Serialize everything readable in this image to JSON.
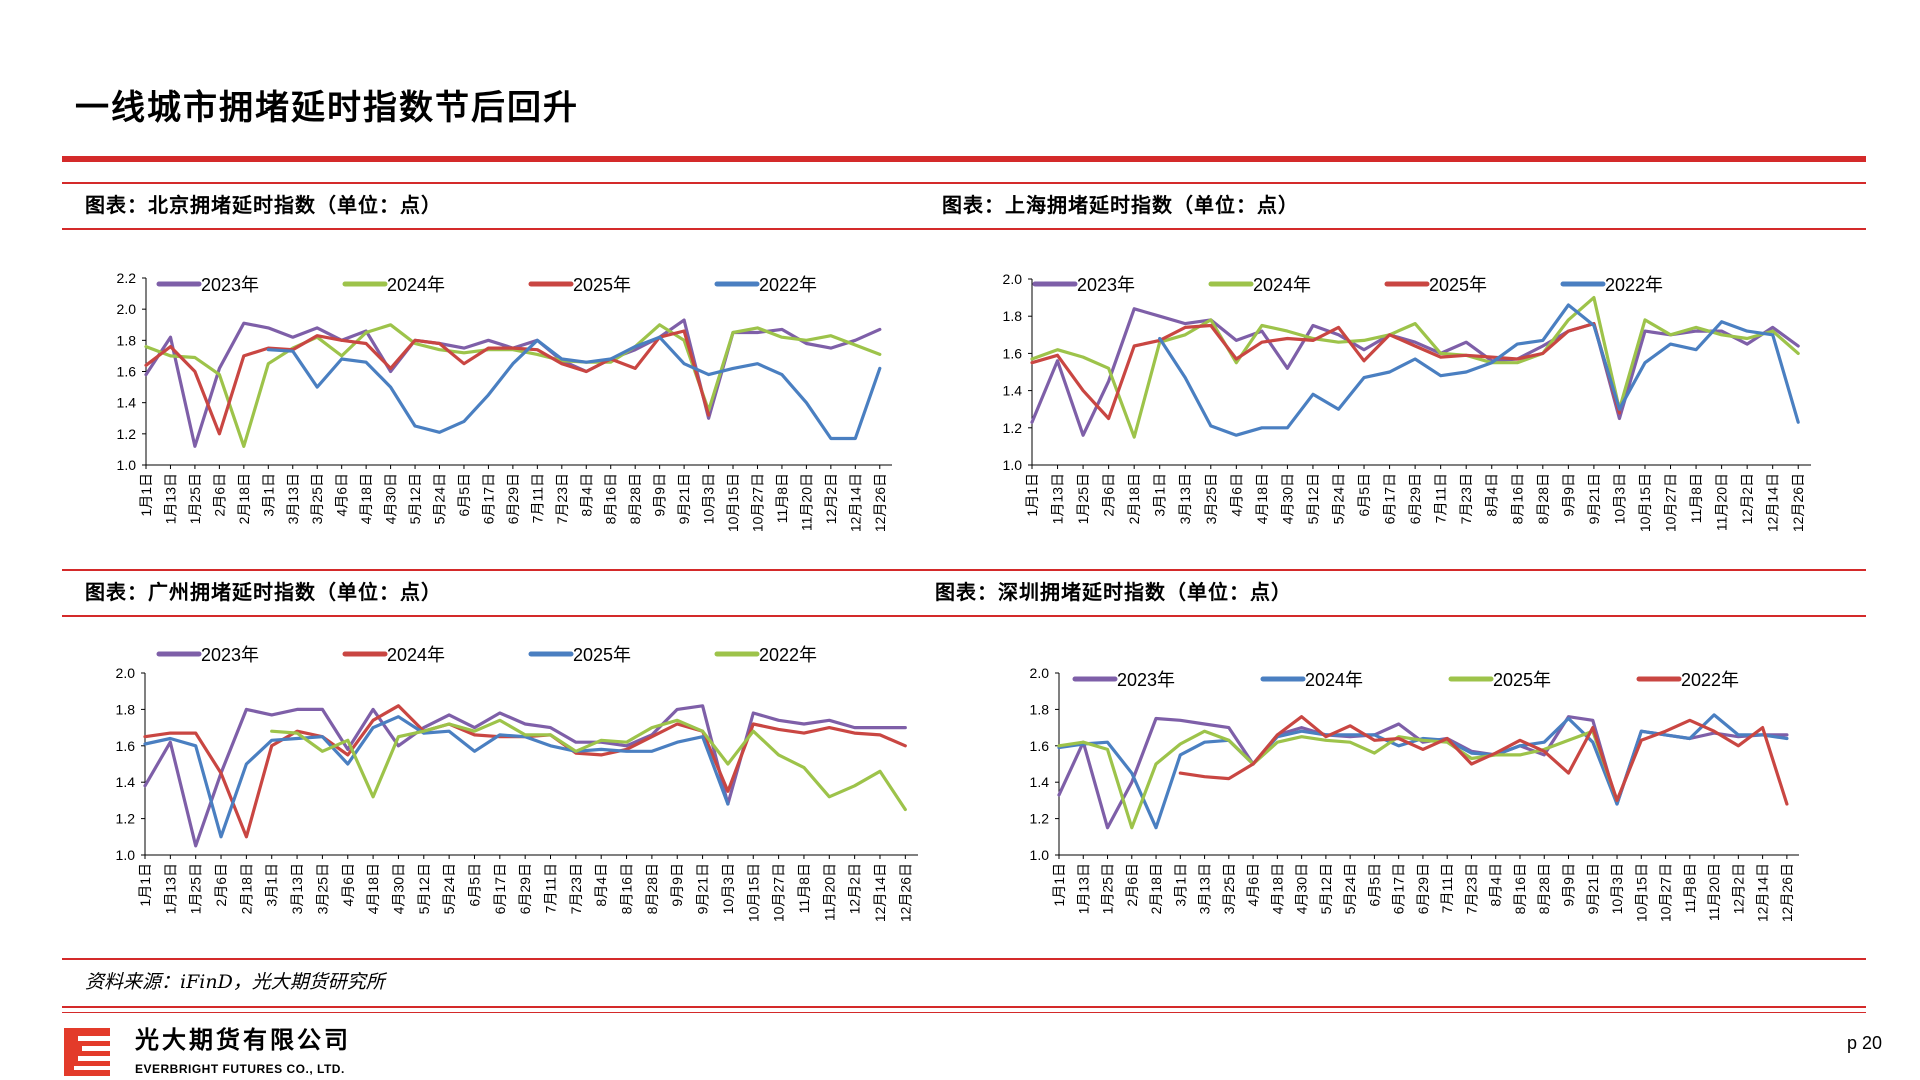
{
  "page": {
    "title": "一线城市拥堵延时指数节后回升",
    "source": "资料来源：iFinD，光大期货研究所",
    "page_number": "p 20",
    "logo": {
      "cn": "光大期货有限公司",
      "en": "EVERBRIGHT FUTURES CO., LTD."
    },
    "accent_color": "#d42a2a"
  },
  "chart_data": [
    {
      "type": "line",
      "title": "图表：北京拥堵延时指数（单位：点）",
      "ylim": [
        1.0,
        2.2
      ],
      "yticks": [
        "1.0",
        "1.2",
        "1.4",
        "1.6",
        "1.8",
        "2.0",
        "2.2"
      ],
      "legend": "top",
      "categories": [
        "1月1日",
        "1月13日",
        "1月25日",
        "2月6日",
        "2月18日",
        "3月1日",
        "3月13日",
        "3月25日",
        "4月6日",
        "4月18日",
        "4月30日",
        "5月12日",
        "5月24日",
        "6月5日",
        "6月17日",
        "6月29日",
        "7月11日",
        "7月23日",
        "8月4日",
        "8月16日",
        "8月28日",
        "9月9日",
        "9月21日",
        "10月3日",
        "10月15日",
        "10月27日",
        "11月8日",
        "11月20日",
        "12月2日",
        "12月14日",
        "12月26日"
      ],
      "series": [
        {
          "name": "2023年",
          "color": "#7e5fa8",
          "values": [
            1.58,
            1.82,
            1.12,
            1.62,
            1.91,
            1.88,
            1.82,
            1.88,
            1.8,
            1.86,
            1.6,
            1.8,
            1.78,
            1.75,
            1.8,
            1.75,
            1.8,
            1.67,
            1.6,
            1.68,
            1.74,
            1.82,
            1.93,
            1.3,
            1.85,
            1.85,
            1.87,
            1.78,
            1.75,
            1.8,
            1.87
          ]
        },
        {
          "name": "2024年",
          "color": "#9dc34a",
          "values": [
            1.76,
            1.7,
            1.69,
            1.58,
            1.12,
            1.65,
            1.75,
            1.82,
            1.7,
            1.85,
            1.9,
            1.78,
            1.74,
            1.72,
            1.74,
            1.74,
            1.71,
            1.67,
            1.66,
            1.66,
            1.76,
            1.9,
            1.8,
            1.35,
            1.85,
            1.88,
            1.82,
            1.8,
            1.83,
            1.77,
            1.71
          ]
        },
        {
          "name": "2025年",
          "color": "#c94642",
          "values": [
            1.64,
            1.76,
            1.6,
            1.2,
            1.7,
            1.75,
            1.74,
            1.83,
            1.8,
            1.78,
            1.62,
            1.8,
            1.78,
            1.65,
            1.75,
            1.75,
            1.74,
            1.65,
            1.6,
            1.68,
            1.62,
            1.82,
            1.86,
            1.32,
            null,
            null,
            null,
            null,
            null,
            null,
            null
          ]
        },
        {
          "name": "2022年",
          "color": "#4a7fc1",
          "values": [
            null,
            null,
            null,
            null,
            null,
            1.74,
            1.73,
            1.5,
            1.68,
            1.66,
            1.5,
            1.25,
            1.21,
            1.28,
            1.45,
            1.65,
            1.8,
            1.68,
            1.66,
            1.68,
            1.76,
            1.82,
            1.65,
            1.58,
            1.62,
            1.65,
            1.58,
            1.4,
            1.17,
            1.17,
            1.62
          ]
        }
      ]
    },
    {
      "type": "line",
      "title": "图表：上海拥堵延时指数（单位：点）",
      "ylim": [
        1.0,
        2.0
      ],
      "yticks": [
        "1.0",
        "1.2",
        "1.4",
        "1.6",
        "1.8",
        "2.0"
      ],
      "legend": "top",
      "categories": [
        "1月1日",
        "1月13日",
        "1月25日",
        "2月6日",
        "2月18日",
        "3月1日",
        "3月13日",
        "3月25日",
        "4月6日",
        "4月18日",
        "4月30日",
        "5月12日",
        "5月24日",
        "6月5日",
        "6月17日",
        "6月29日",
        "7月11日",
        "7月23日",
        "8月4日",
        "8月16日",
        "8月28日",
        "9月9日",
        "9月21日",
        "10月3日",
        "10月15日",
        "10月27日",
        "11月8日",
        "11月20日",
        "12月2日",
        "12月14日",
        "12月26日"
      ],
      "series": [
        {
          "name": "2023年",
          "color": "#7e5fa8",
          "values": [
            1.23,
            1.56,
            1.16,
            1.45,
            1.84,
            1.8,
            1.76,
            1.78,
            1.67,
            1.72,
            1.52,
            1.75,
            1.7,
            1.62,
            1.7,
            1.66,
            1.6,
            1.66,
            1.56,
            1.57,
            1.64,
            1.72,
            1.76,
            1.25,
            1.72,
            1.7,
            1.72,
            1.72,
            1.65,
            1.74,
            1.64
          ]
        },
        {
          "name": "2024年",
          "color": "#9dc34a",
          "values": [
            1.57,
            1.62,
            1.58,
            1.52,
            1.15,
            1.66,
            1.7,
            1.78,
            1.55,
            1.75,
            1.72,
            1.68,
            1.66,
            1.67,
            1.7,
            1.76,
            1.6,
            1.59,
            1.55,
            1.55,
            1.6,
            1.78,
            1.9,
            1.3,
            1.78,
            1.7,
            1.74,
            1.7,
            1.68,
            1.72,
            1.6
          ]
        },
        {
          "name": "2025年",
          "color": "#c94642",
          "values": [
            1.55,
            1.59,
            1.4,
            1.25,
            1.64,
            1.67,
            1.74,
            1.75,
            1.57,
            1.66,
            1.68,
            1.67,
            1.74,
            1.56,
            1.7,
            1.64,
            1.58,
            1.59,
            1.58,
            1.57,
            1.6,
            1.72,
            1.76,
            1.28,
            null,
            null,
            null,
            null,
            null,
            null,
            null
          ]
        },
        {
          "name": "2022年",
          "color": "#4a7fc1",
          "values": [
            null,
            null,
            null,
            null,
            null,
            1.68,
            1.47,
            1.21,
            1.16,
            1.2,
            1.2,
            1.38,
            1.3,
            1.47,
            1.5,
            1.57,
            1.48,
            1.5,
            1.55,
            1.65,
            1.67,
            1.86,
            1.75,
            1.3,
            1.55,
            1.65,
            1.62,
            1.77,
            1.72,
            1.7,
            1.23
          ]
        }
      ]
    },
    {
      "type": "line",
      "title": "图表：广州拥堵延时指数（单位：点）",
      "ylim": [
        1.0,
        2.0
      ],
      "yticks": [
        "1.0",
        "1.2",
        "1.4",
        "1.6",
        "1.8",
        "2.0"
      ],
      "legend": "top",
      "categories": [
        "1月1日",
        "1月13日",
        "1月25日",
        "2月6日",
        "2月18日",
        "3月1日",
        "3月13日",
        "3月25日",
        "4月6日",
        "4月18日",
        "4月30日",
        "5月12日",
        "5月24日",
        "6月5日",
        "6月17日",
        "6月29日",
        "7月11日",
        "7月23日",
        "8月4日",
        "8月16日",
        "8月28日",
        "9月9日",
        "9月21日",
        "10月3日",
        "10月15日",
        "10月27日",
        "11月8日",
        "11月20日",
        "12月2日",
        "12月14日",
        "12月26日"
      ],
      "series": [
        {
          "name": "2023年",
          "color": "#7e5fa8",
          "values": [
            1.38,
            1.62,
            1.05,
            1.45,
            1.8,
            1.77,
            1.8,
            1.8,
            1.58,
            1.8,
            1.6,
            1.7,
            1.77,
            1.7,
            1.78,
            1.72,
            1.7,
            1.62,
            1.62,
            1.6,
            1.66,
            1.8,
            1.82,
            1.28,
            1.78,
            1.74,
            1.72,
            1.74,
            1.7,
            1.7,
            1.7
          ]
        },
        {
          "name": "2024年",
          "color": "#c94642",
          "values": [
            1.65,
            1.67,
            1.67,
            1.45,
            1.1,
            1.6,
            1.68,
            1.65,
            1.55,
            1.74,
            1.82,
            1.68,
            1.72,
            1.66,
            1.65,
            1.65,
            1.66,
            1.56,
            1.55,
            1.58,
            1.65,
            1.72,
            1.68,
            1.35,
            1.72,
            1.69,
            1.67,
            1.7,
            1.67,
            1.66,
            1.6
          ]
        },
        {
          "name": "2025年",
          "color": "#4a7fc1",
          "values": [
            1.61,
            1.64,
            1.6,
            1.1,
            1.5,
            1.63,
            1.64,
            1.65,
            1.5,
            1.7,
            1.76,
            1.67,
            1.68,
            1.57,
            1.66,
            1.65,
            1.6,
            1.57,
            1.58,
            1.57,
            1.57,
            1.62,
            1.65,
            1.28,
            null,
            null,
            null,
            null,
            null,
            null,
            null
          ]
        },
        {
          "name": "2022年",
          "color": "#9dc34a",
          "values": [
            null,
            null,
            null,
            null,
            null,
            1.68,
            1.67,
            1.57,
            1.63,
            1.32,
            1.65,
            1.68,
            1.72,
            1.68,
            1.74,
            1.66,
            1.66,
            1.57,
            1.63,
            1.62,
            1.7,
            1.74,
            1.68,
            1.5,
            1.68,
            1.55,
            1.48,
            1.32,
            1.38,
            1.46,
            1.25
          ]
        }
      ]
    },
    {
      "type": "line",
      "title": "图表：深圳拥堵延时指数（单位：点）",
      "ylim": [
        1.0,
        2.0
      ],
      "yticks": [
        "1.0",
        "1.2",
        "1.4",
        "1.6",
        "1.8",
        "2.0"
      ],
      "legend": "top",
      "categories": [
        "1月1日",
        "1月13日",
        "1月25日",
        "2月6日",
        "2月18日",
        "3月1日",
        "3月13日",
        "3月25日",
        "4月6日",
        "4月18日",
        "4月30日",
        "5月12日",
        "5月24日",
        "6月5日",
        "6月17日",
        "6月29日",
        "7月11日",
        "7月23日",
        "8月4日",
        "8月16日",
        "8月28日",
        "9月9日",
        "9月21日",
        "10月3日",
        "10月15日",
        "10月27日",
        "11月8日",
        "11月20日",
        "12月2日",
        "12月14日",
        "12月26日"
      ],
      "series": [
        {
          "name": "2023年",
          "color": "#7e5fa8",
          "values": [
            1.33,
            1.62,
            1.15,
            1.4,
            1.75,
            1.74,
            1.72,
            1.7,
            1.5,
            1.66,
            1.7,
            1.66,
            1.65,
            1.66,
            1.72,
            1.62,
            1.64,
            1.57,
            1.55,
            1.6,
            1.55,
            1.76,
            1.74,
            1.28,
            1.68,
            1.66,
            1.64,
            1.67,
            1.65,
            1.66,
            1.66
          ]
        },
        {
          "name": "2024年",
          "color": "#4a7fc1",
          "values": [
            1.59,
            1.61,
            1.62,
            1.45,
            1.15,
            1.55,
            1.62,
            1.63,
            1.5,
            1.65,
            1.68,
            1.66,
            1.66,
            1.66,
            1.6,
            1.64,
            1.63,
            1.56,
            1.55,
            1.6,
            1.62,
            1.75,
            1.62,
            1.28,
            1.68,
            1.66,
            1.64,
            1.77,
            1.66,
            1.66,
            1.64
          ]
        },
        {
          "name": "2025年",
          "color": "#9dc34a",
          "values": [
            1.6,
            1.62,
            1.58,
            1.15,
            1.5,
            1.61,
            1.68,
            1.63,
            1.5,
            1.62,
            1.65,
            1.63,
            1.62,
            1.56,
            1.65,
            1.63,
            1.62,
            1.53,
            1.55,
            1.55,
            1.58,
            1.63,
            1.68,
            1.3,
            null,
            null,
            null,
            null,
            null,
            null,
            null
          ]
        },
        {
          "name": "2022年",
          "color": "#c94642",
          "values": [
            null,
            null,
            null,
            null,
            null,
            1.45,
            1.43,
            1.42,
            1.5,
            1.66,
            1.76,
            1.65,
            1.71,
            1.63,
            1.64,
            1.58,
            1.64,
            1.5,
            1.56,
            1.63,
            1.57,
            1.45,
            1.7,
            1.3,
            1.63,
            1.68,
            1.74,
            1.68,
            1.6,
            1.7,
            1.28
          ]
        }
      ]
    }
  ]
}
